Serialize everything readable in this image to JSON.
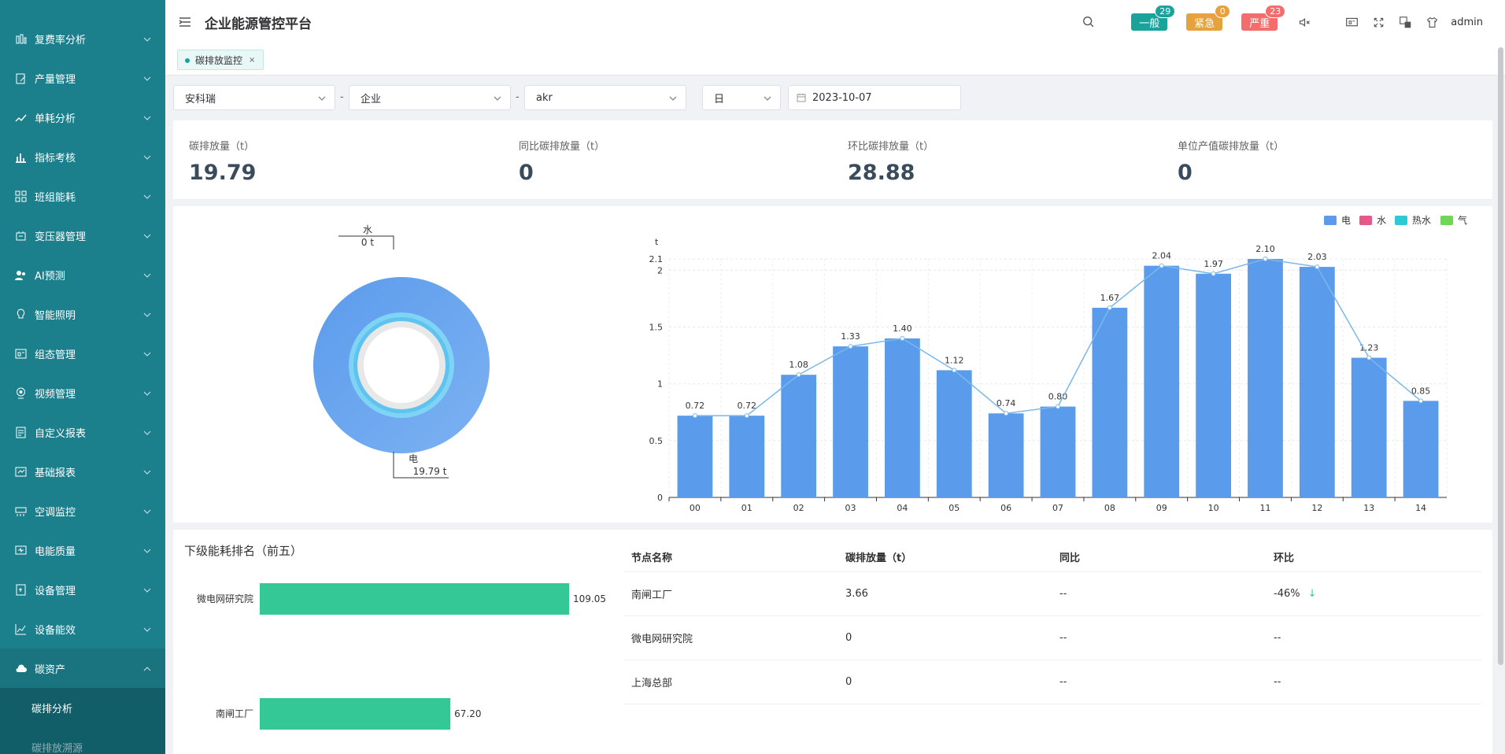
{
  "sidebar": {
    "items": [
      {
        "label": "复费率分析",
        "icon": "chart-icon"
      },
      {
        "label": "产量管理",
        "icon": "edit-icon"
      },
      {
        "label": "单耗分析",
        "icon": "trend-icon"
      },
      {
        "label": "指标考核",
        "icon": "bar-icon"
      },
      {
        "label": "班组能耗",
        "icon": "grid-icon"
      },
      {
        "label": "变压器管理",
        "icon": "transformer-icon"
      },
      {
        "label": "AI预测",
        "icon": "users-icon"
      },
      {
        "label": "智能照明",
        "icon": "bulb-icon"
      },
      {
        "label": "组态管理",
        "icon": "config-icon"
      },
      {
        "label": "视频管理",
        "icon": "camera-icon"
      },
      {
        "label": "自定义报表",
        "icon": "report-icon"
      },
      {
        "label": "基础报表",
        "icon": "table-icon"
      },
      {
        "label": "空调监控",
        "icon": "ac-icon"
      },
      {
        "label": "电能质量",
        "icon": "monitor-icon"
      },
      {
        "label": "设备管理",
        "icon": "device-icon"
      },
      {
        "label": "设备能效",
        "icon": "efficiency-icon"
      },
      {
        "label": "碳资产",
        "icon": "cloud-icon"
      }
    ],
    "sub_items": [
      {
        "label": "碳排分析"
      },
      {
        "label": "碳排放溯源"
      }
    ]
  },
  "header": {
    "title": "企业能源管控平台",
    "alarms": [
      {
        "label": "一般",
        "count": "29",
        "color": "#1aa39a",
        "badge_color": "#1aa39a"
      },
      {
        "label": "紧急",
        "count": "0",
        "color": "#e6a23c",
        "badge_color": "#e6a23c"
      },
      {
        "label": "严重",
        "count": "23",
        "color": "#f56c6c",
        "badge_color": "#f56c6c"
      }
    ],
    "user": "admin"
  },
  "tags": {
    "active": "碳排放监控",
    "close": "×"
  },
  "filters": {
    "company": "安科瑞",
    "type": "企业",
    "node": "akr",
    "period": "日",
    "date": "2023-10-07",
    "dash": "-"
  },
  "summary": [
    {
      "title": "碳排放量（t）",
      "value": "19.79"
    },
    {
      "title": "同比碳排放量（t）",
      "value": "0"
    },
    {
      "title": "环比碳排放量（t）",
      "value": "28.88"
    },
    {
      "title": "单位产值碳排放量（t）",
      "value": "0"
    }
  ],
  "donut": {
    "labels": [
      {
        "name": "水",
        "value": "0 t"
      },
      {
        "name": "电",
        "value": "19.79 t"
      }
    ],
    "colors": {
      "outer": "#5b9bec",
      "outer_light": "#7db2f2",
      "inner_ring": "#7fd3f5",
      "core": "#e8e8e8"
    }
  },
  "chart_data": {
    "type": "bar",
    "unit": "t",
    "categories": [
      "00",
      "01",
      "02",
      "03",
      "04",
      "05",
      "06",
      "07",
      "08",
      "09",
      "10",
      "11",
      "12",
      "13",
      "14"
    ],
    "series": [
      {
        "name": "电",
        "color": "#5b9bec",
        "values": [
          0.72,
          0.72,
          1.08,
          1.33,
          1.4,
          1.12,
          0.74,
          0.8,
          1.67,
          2.04,
          1.97,
          2.1,
          2.03,
          1.23,
          0.85
        ]
      }
    ],
    "line_color": "#7ab8ea",
    "value_labels": [
      "0.72",
      "0.72",
      "1.08",
      "1.33",
      "1.40",
      "1.12",
      "0.74",
      "0.80",
      "1.67",
      "2.04",
      "1.97",
      "2.10",
      "2.03",
      "1.23",
      "0.85"
    ],
    "y_ticks": [
      "0",
      "0.5",
      "1",
      "1.5",
      "2",
      "2.1"
    ],
    "ylim": [
      0,
      2.1
    ],
    "legend": [
      {
        "name": "电",
        "color": "#5b9bec"
      },
      {
        "name": "水",
        "color": "#e8578a"
      },
      {
        "name": "热水",
        "color": "#2ec8d6"
      },
      {
        "name": "气",
        "color": "#72d45a"
      }
    ],
    "legend_position": "top-right",
    "grid": true
  },
  "ranking": {
    "title": "下级能耗排名（前五）",
    "bar_color": "#34c896",
    "items": [
      {
        "name": "微电网研究院",
        "value": 109.05,
        "label": "109.05"
      },
      {
        "name": "南闸工厂",
        "value": 67.2,
        "label": "67.20"
      }
    ]
  },
  "table": {
    "headers": [
      "节点名称",
      "碳排放量（t）",
      "同比",
      "环比"
    ],
    "rows": [
      {
        "name": "南闸工厂",
        "value": "3.66",
        "yoy": "--",
        "mom": "-46%",
        "arrow": "↓"
      },
      {
        "name": "微电网研究院",
        "value": "0",
        "yoy": "--",
        "mom": "--",
        "arrow": ""
      },
      {
        "name": "上海总部",
        "value": "0",
        "yoy": "--",
        "mom": "--",
        "arrow": ""
      }
    ]
  }
}
